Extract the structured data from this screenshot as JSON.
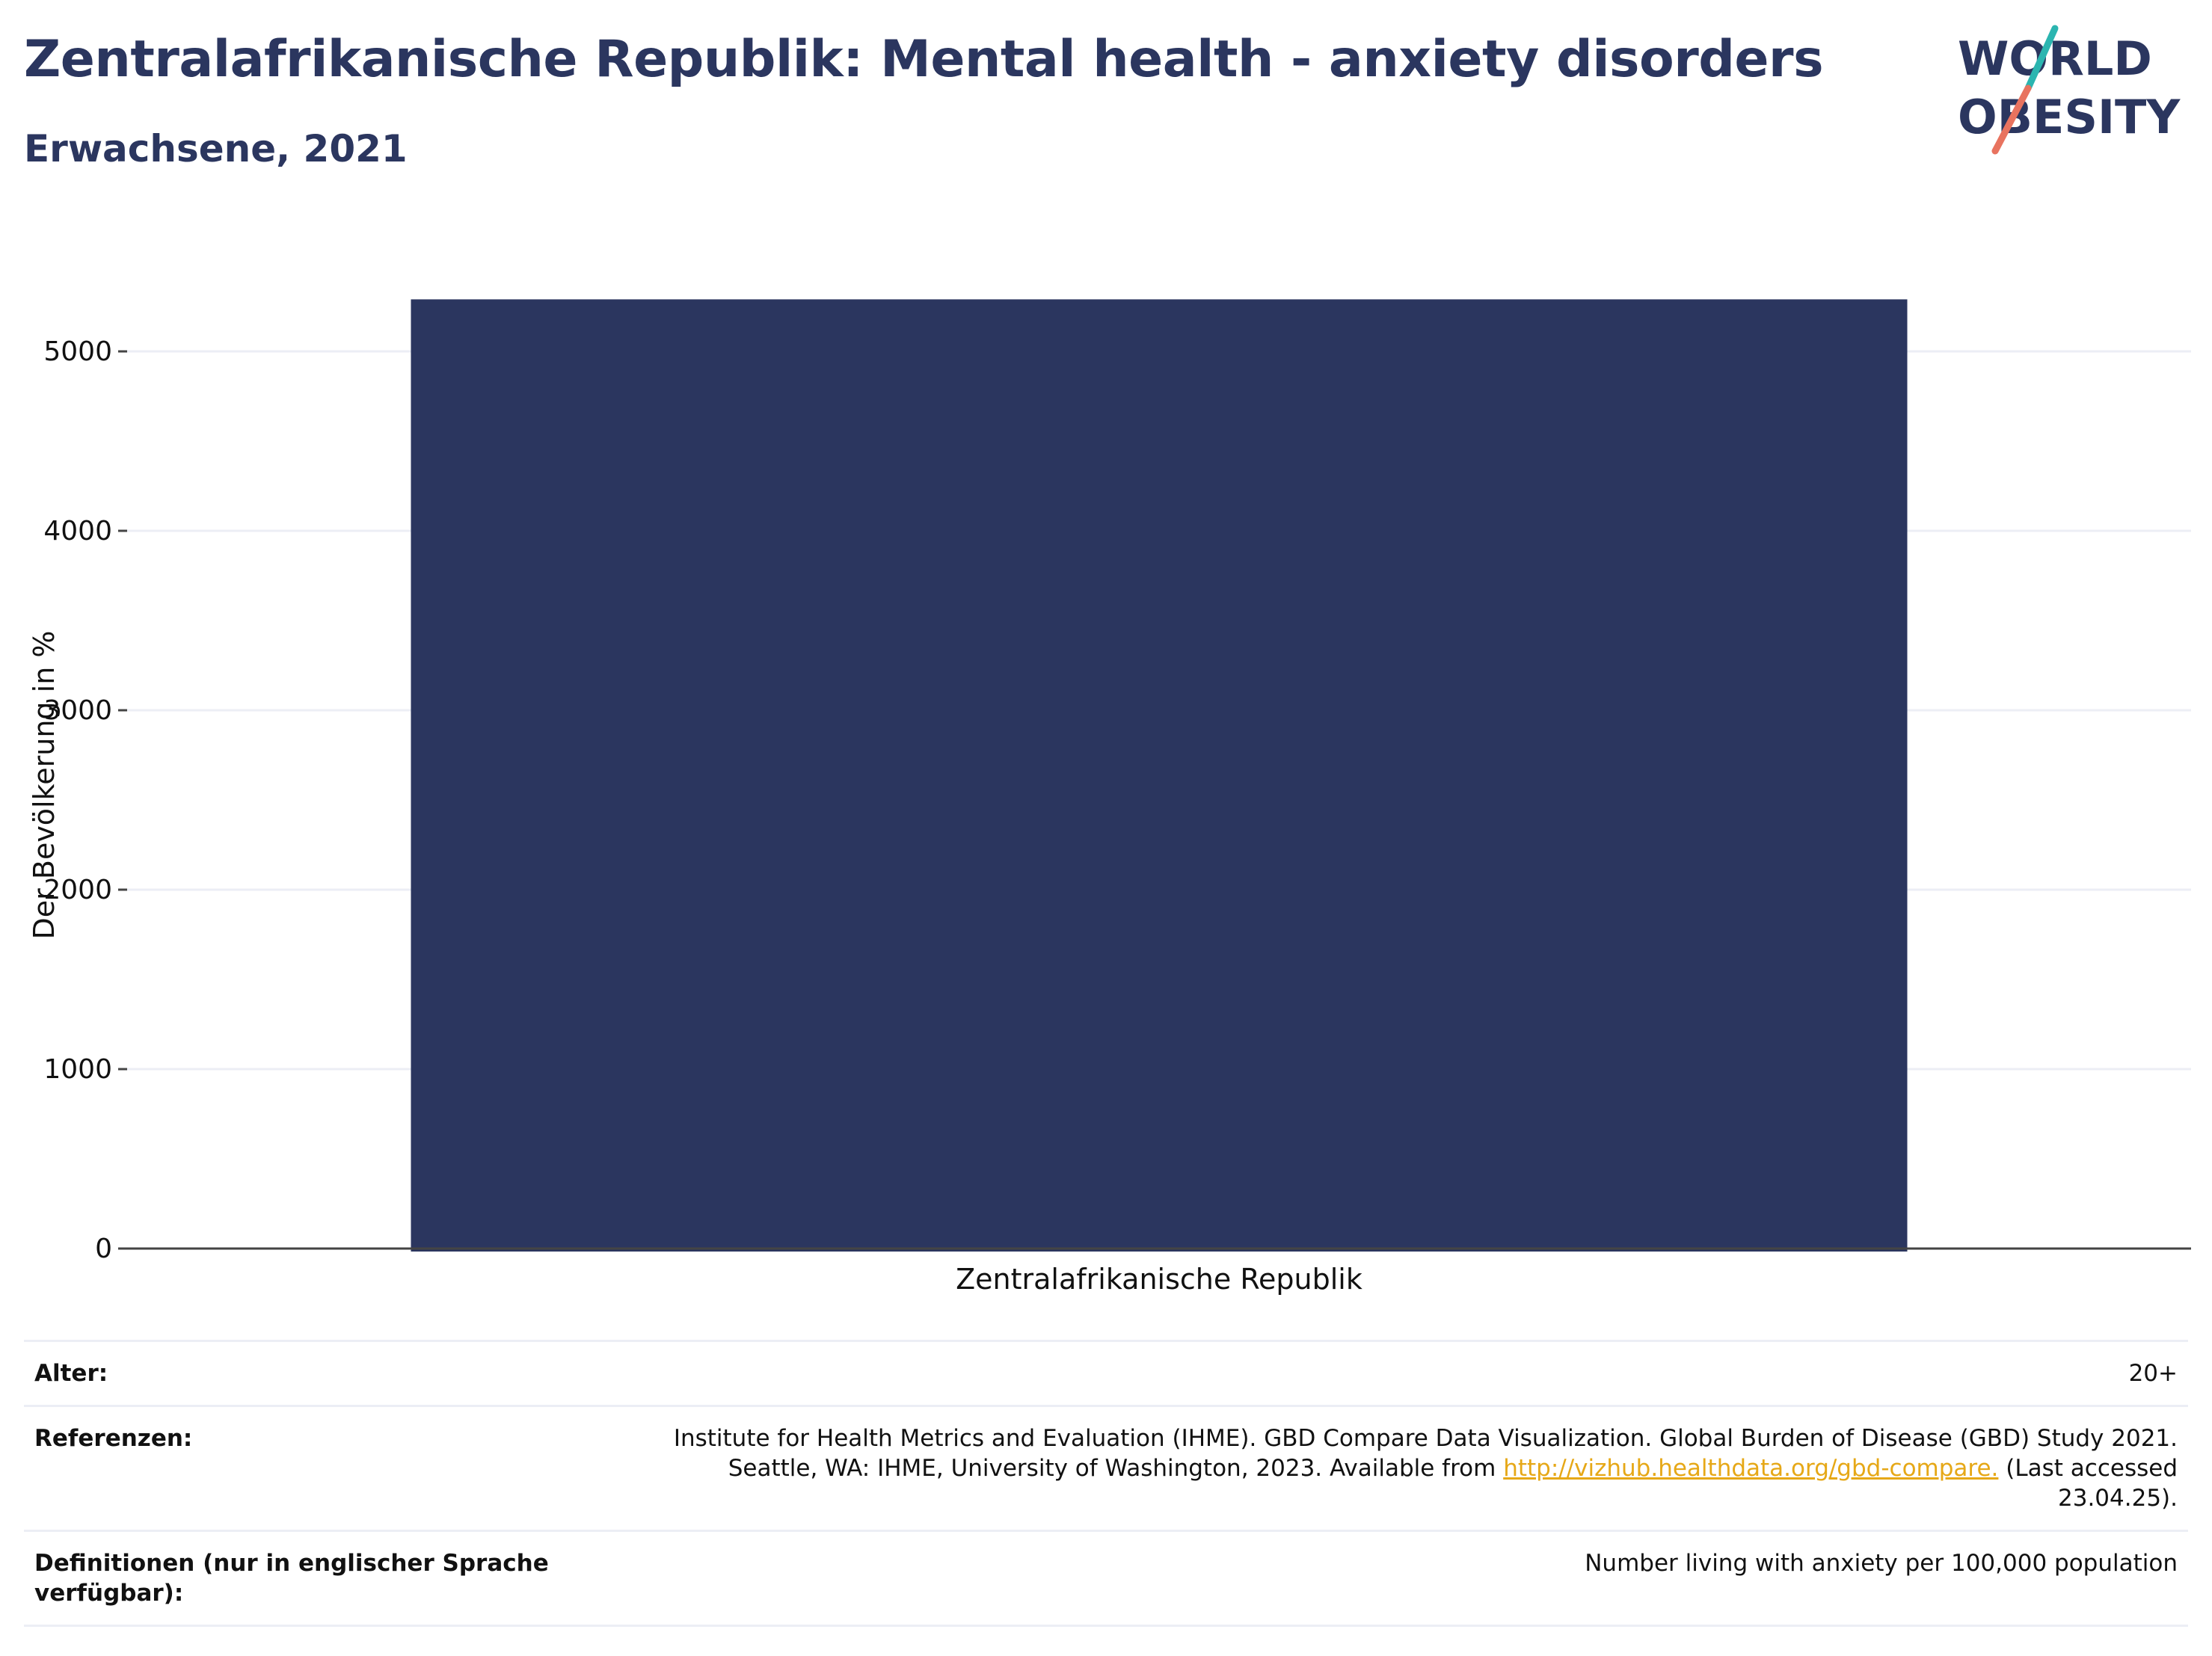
{
  "header": {
    "title": "Zentralafrikanische Republik: Mental health - anxiety disorders",
    "subtitle": "Erwachsene, 2021"
  },
  "logo": {
    "line1": "WORLD",
    "line2": "OBESITY",
    "text_color": "#2b365f",
    "slash_color_top": "#2bb5b0",
    "slash_color_bottom": "#e8735f"
  },
  "chart_data": {
    "type": "bar",
    "categories": [
      "Zentralafrikanische Republik"
    ],
    "values": [
      5290
    ],
    "xlabel": "",
    "ylabel": "Der Bevölkerung in %",
    "ylim": [
      0,
      5500
    ],
    "yticks": [
      0,
      1000,
      2000,
      3000,
      4000,
      5000
    ],
    "grid": true,
    "bar_color": "#2b365f"
  },
  "meta": {
    "age_label": "Alter:",
    "age_value": "20+",
    "references_label": "Referenzen:",
    "references_line1": "Institute for Health Metrics and Evaluation (IHME). GBD Compare Data Visualization. Global Burden of Disease (GBD) Study 2021.",
    "references_line2_before": "Seattle, WA: IHME, University of Washington, 2023. Available from ",
    "references_link": "http://vizhub.healthdata.org/gbd-compare.",
    "references_line2_after": " (Last accessed",
    "references_line3": "23.04.25).",
    "definitions_label": "Definitionen (nur in englischer Sprache verfügbar):",
    "definitions_value": "Number living with anxiety per 100,000 population"
  }
}
